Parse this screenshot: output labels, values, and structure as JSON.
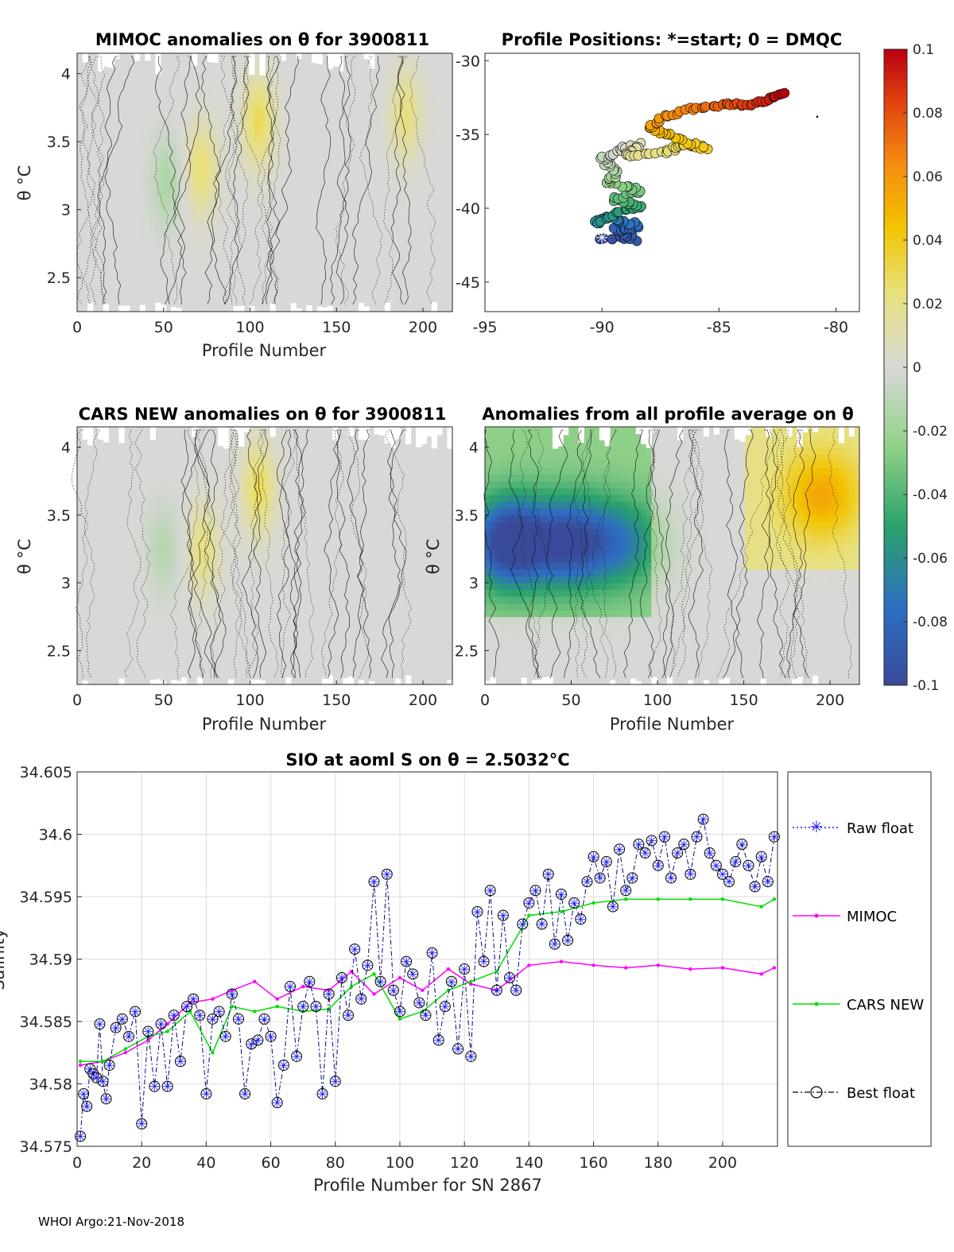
{
  "footer": "WHOI Argo:21-Nov-2018",
  "colorbar": {
    "ticks": [
      "0.1",
      "0.08",
      "0.06",
      "0.04",
      "0.02",
      "0",
      "-0.02",
      "-0.04",
      "-0.06",
      "-0.08",
      "-0.1"
    ],
    "min": -0.1,
    "max": 0.1
  },
  "chart_data": [
    {
      "type": "heatmap",
      "title": "MIMOC anomalies on θ  for 3900811",
      "xlabel": "Profile Number",
      "ylabel": "θ °C",
      "xlim": [
        0,
        217
      ],
      "ylim": [
        2.25,
        4.15
      ],
      "xticks": [
        "0",
        "50",
        "100",
        "150",
        "200"
      ],
      "yticks": [
        "2.5",
        "3",
        "3.5",
        "4"
      ],
      "features": [
        {
          "x": 52,
          "y": 3.2,
          "value": -0.015
        },
        {
          "x": 72,
          "y": 3.3,
          "value": 0.025
        },
        {
          "x": 105,
          "y": 3.65,
          "value": 0.03
        },
        {
          "x": 190,
          "y": 3.7,
          "value": 0.022
        }
      ]
    },
    {
      "type": "scatter",
      "title": "Profile Positions: *=start; 0 = DMQC",
      "xlim": [
        -95,
        -79
      ],
      "ylim": [
        -47,
        -29.5
      ],
      "xticks": [
        "-95",
        "-90",
        "-85",
        "-80"
      ],
      "yticks": [
        "-30",
        "-35",
        "-40",
        "-45"
      ]
    },
    {
      "type": "heatmap",
      "title": "CARS NEW anomalies on θ for 3900811",
      "xlabel": "Profile Number",
      "ylabel": "θ °C",
      "xlim": [
        0,
        217
      ],
      "ylim": [
        2.25,
        4.15
      ],
      "xticks": [
        "0",
        "50",
        "100",
        "150",
        "200"
      ],
      "yticks": [
        "2.5",
        "3",
        "3.5",
        "4"
      ],
      "features": [
        {
          "x": 50,
          "y": 3.25,
          "value": -0.012
        },
        {
          "x": 73,
          "y": 3.25,
          "value": 0.022
        },
        {
          "x": 105,
          "y": 3.7,
          "value": 0.03
        }
      ]
    },
    {
      "type": "heatmap",
      "title": "Anomalies from all profile average on θ",
      "xlabel": "Profile Number",
      "ylabel": "θ °C",
      "xlim": [
        0,
        217
      ],
      "ylim": [
        2.25,
        4.15
      ],
      "xticks": [
        "0",
        "50",
        "100",
        "150",
        "200"
      ],
      "yticks": [
        "2.5",
        "3",
        "3.5",
        "4"
      ],
      "features": [
        {
          "x": 15,
          "y": 3.3,
          "value": -0.09
        },
        {
          "x": 50,
          "y": 3.3,
          "value": -0.07
        },
        {
          "x": 80,
          "y": 3.3,
          "value": -0.04
        },
        {
          "x": 195,
          "y": 3.65,
          "value": 0.035
        }
      ]
    },
    {
      "type": "line",
      "title": "SIO at aoml S on θ = 2.5032°C",
      "xlabel": "Profile Number for SN 2867",
      "ylabel": "Salinity",
      "xlim": [
        0,
        217
      ],
      "ylim": [
        34.575,
        34.605
      ],
      "xticks": [
        "0",
        "20",
        "40",
        "60",
        "80",
        "100",
        "120",
        "140",
        "160",
        "180",
        "200"
      ],
      "yticks": [
        "34.575",
        "34.58",
        "34.585",
        "34.59",
        "34.595",
        "34.6",
        "34.605"
      ],
      "legend": [
        "Raw float",
        "MIMOC",
        "CARS NEW",
        "Best float"
      ],
      "series": [
        {
          "name": "MIMOC",
          "color": "#ff00ff",
          "x": [
            1,
            8,
            15,
            22,
            28,
            35,
            42,
            48,
            55,
            62,
            70,
            78,
            85,
            92,
            100,
            107,
            115,
            122,
            130,
            140,
            150,
            160,
            170,
            180,
            190,
            200,
            212,
            216
          ],
          "values": [
            34.5815,
            34.5818,
            34.5825,
            34.5835,
            34.5848,
            34.5865,
            34.5868,
            34.5875,
            34.5882,
            34.5868,
            34.5878,
            34.5875,
            34.589,
            34.5872,
            34.5885,
            34.5875,
            34.5892,
            34.588,
            34.5875,
            34.5895,
            34.5898,
            34.5895,
            34.5893,
            34.5895,
            34.5892,
            34.5893,
            34.5888,
            34.5893
          ]
        },
        {
          "name": "CARS NEW",
          "color": "#00dd00",
          "x": [
            1,
            8,
            15,
            22,
            28,
            35,
            42,
            48,
            55,
            62,
            70,
            78,
            85,
            92,
            100,
            107,
            115,
            122,
            130,
            140,
            150,
            160,
            170,
            180,
            190,
            200,
            212,
            216
          ],
          "values": [
            34.5818,
            34.5818,
            34.5828,
            34.5838,
            34.5842,
            34.5858,
            34.5825,
            34.5862,
            34.5858,
            34.5862,
            34.5858,
            34.586,
            34.5878,
            34.5888,
            34.5852,
            34.5858,
            34.5875,
            34.5882,
            34.589,
            34.5935,
            34.5938,
            34.5945,
            34.5948,
            34.5948,
            34.5948,
            34.5948,
            34.5942,
            34.5948
          ]
        },
        {
          "name": "Best float",
          "color": "#000080",
          "x": [
            1,
            2,
            3,
            4,
            5,
            6,
            7,
            8,
            9,
            10,
            12,
            14,
            16,
            18,
            20,
            22,
            24,
            26,
            28,
            30,
            32,
            34,
            36,
            38,
            40,
            42,
            44,
            46,
            48,
            50,
            52,
            54,
            56,
            58,
            60,
            62,
            64,
            66,
            68,
            70,
            72,
            74,
            76,
            78,
            80,
            82,
            84,
            86,
            88,
            90,
            92,
            94,
            96,
            98,
            100,
            102,
            104,
            106,
            108,
            110,
            112,
            114,
            116,
            118,
            120,
            122,
            124,
            126,
            128,
            130,
            132,
            134,
            136,
            138,
            140,
            142,
            144,
            146,
            148,
            150,
            152,
            154,
            156,
            158,
            160,
            162,
            164,
            166,
            168,
            170,
            172,
            174,
            176,
            178,
            180,
            182,
            184,
            186,
            188,
            190,
            192,
            194,
            196,
            198,
            200,
            202,
            204,
            206,
            208,
            210,
            212,
            214,
            216
          ],
          "values": [
            34.5758,
            34.5792,
            34.5782,
            34.5812,
            34.5808,
            34.5805,
            34.5848,
            34.5802,
            34.5788,
            34.5815,
            34.5845,
            34.5852,
            34.5838,
            34.5858,
            34.5768,
            34.5842,
            34.5798,
            34.5848,
            34.5798,
            34.5855,
            34.5818,
            34.5862,
            34.5868,
            34.5855,
            34.5792,
            34.5852,
            34.5858,
            34.5838,
            34.5872,
            34.5852,
            34.5792,
            34.5832,
            34.5835,
            34.5852,
            34.5838,
            34.5785,
            34.5815,
            34.5878,
            34.5822,
            34.5862,
            34.5882,
            34.5862,
            34.5792,
            34.5872,
            34.5802,
            34.5885,
            34.5855,
            34.5908,
            34.5868,
            34.5895,
            34.5962,
            34.5882,
            34.5968,
            34.5875,
            34.5858,
            34.5898,
            34.5888,
            34.5865,
            34.5855,
            34.5905,
            34.5835,
            34.5862,
            34.5882,
            34.5828,
            34.5892,
            34.5822,
            34.5938,
            34.5898,
            34.5955,
            34.5875,
            34.5935,
            34.5885,
            34.5875,
            34.5928,
            34.5945,
            34.5955,
            34.5928,
            34.5968,
            34.5912,
            34.5952,
            34.5915,
            34.5945,
            34.5932,
            34.5962,
            34.5982,
            34.5965,
            34.5978,
            34.5942,
            34.5988,
            34.5955,
            34.5965,
            34.5992,
            34.5985,
            34.5995,
            34.5975,
            34.5998,
            34.5965,
            34.5985,
            34.5992,
            34.5968,
            34.5998,
            34.6012,
            34.5985,
            34.5975,
            34.5968,
            34.5962,
            34.5978,
            34.5992,
            34.5975,
            34.5958,
            34.5982,
            34.5962,
            34.5998
          ]
        }
      ]
    }
  ]
}
